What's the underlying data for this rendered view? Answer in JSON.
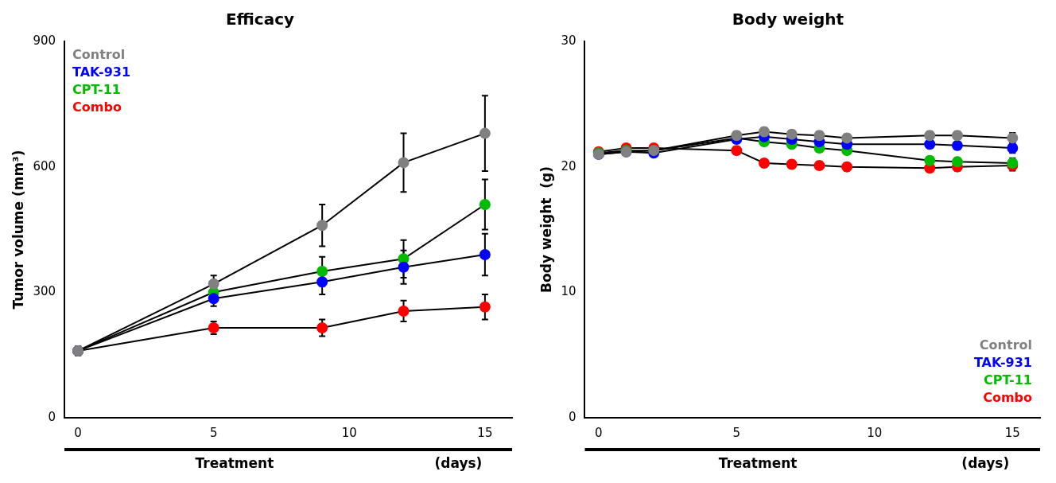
{
  "chart_data": [
    {
      "type": "line",
      "title": "Efficacy",
      "ylabel": "Tumor volume (mm³)",
      "annotations": [
        "Treatment",
        "(days)"
      ],
      "x": [
        0,
        5,
        9,
        12,
        15
      ],
      "xlim": [
        -0.5,
        16
      ],
      "xticks": [
        0,
        5,
        10,
        15
      ],
      "ylim": [
        0,
        900
      ],
      "yticks": [
        0,
        300,
        600,
        900
      ],
      "grid": false,
      "legend": "upper left",
      "marker": "circle",
      "line_style": "solid",
      "series": [
        {
          "name": "Control",
          "color": "#808080",
          "values": [
            160,
            320,
            460,
            610,
            680
          ],
          "yerr": [
            10,
            20,
            50,
            70,
            90
          ]
        },
        {
          "name": "TAK-931",
          "color": "#0000FF",
          "values": [
            160,
            285,
            325,
            360,
            390
          ],
          "yerr": [
            10,
            18,
            30,
            40,
            50
          ]
        },
        {
          "name": "CPT-11",
          "color": "#00BB00",
          "values": [
            160,
            300,
            350,
            380,
            510
          ],
          "yerr": [
            10,
            20,
            35,
            45,
            60
          ]
        },
        {
          "name": "Combo",
          "color": "#FF0000",
          "values": [
            160,
            215,
            215,
            255,
            265
          ],
          "yerr": [
            10,
            15,
            20,
            25,
            30
          ]
        }
      ]
    },
    {
      "type": "line",
      "title": "Body weight",
      "ylabel": "Body weight  (g)",
      "annotations": [
        "Treatment",
        "(days)"
      ],
      "x": [
        0,
        1,
        2,
        5,
        6,
        7,
        8,
        9,
        12,
        13,
        15
      ],
      "xlim": [
        -0.5,
        16
      ],
      "xticks": [
        0,
        5,
        10,
        15
      ],
      "ylim": [
        0,
        30
      ],
      "yticks": [
        0,
        10,
        20,
        30
      ],
      "grid": false,
      "legend": "lower right",
      "marker": "circle",
      "line_style": "solid",
      "series": [
        {
          "name": "Control",
          "color": "#808080",
          "values": [
            21.0,
            21.2,
            21.3,
            22.5,
            22.8,
            22.6,
            22.5,
            22.3,
            22.5,
            22.5,
            22.3
          ],
          "yerr": [
            0.3,
            0.2,
            0.2,
            0.3,
            0.3,
            0.3,
            0.3,
            0.3,
            0.3,
            0.3,
            0.4
          ]
        },
        {
          "name": "TAK-931",
          "color": "#0000FF",
          "values": [
            21.0,
            21.2,
            21.1,
            22.2,
            22.4,
            22.2,
            22.0,
            21.8,
            21.8,
            21.7,
            21.5
          ],
          "yerr": [
            0.3,
            0.2,
            0.2,
            0.3,
            0.3,
            0.3,
            0.3,
            0.3,
            0.3,
            0.3,
            0.4
          ]
        },
        {
          "name": "CPT-11",
          "color": "#00BB00",
          "values": [
            21.1,
            21.3,
            21.3,
            22.3,
            22.0,
            21.8,
            21.5,
            21.3,
            20.5,
            20.4,
            20.3
          ],
          "yerr": [
            0.3,
            0.2,
            0.2,
            0.3,
            0.3,
            0.3,
            0.3,
            0.3,
            0.3,
            0.3,
            0.4
          ]
        },
        {
          "name": "Combo",
          "color": "#FF0000",
          "values": [
            21.2,
            21.5,
            21.5,
            21.3,
            20.3,
            20.2,
            20.1,
            20.0,
            19.9,
            20.0,
            20.1
          ],
          "yerr": [
            0.3,
            0.2,
            0.2,
            0.3,
            0.3,
            0.3,
            0.3,
            0.3,
            0.3,
            0.3,
            0.4
          ]
        }
      ]
    }
  ]
}
